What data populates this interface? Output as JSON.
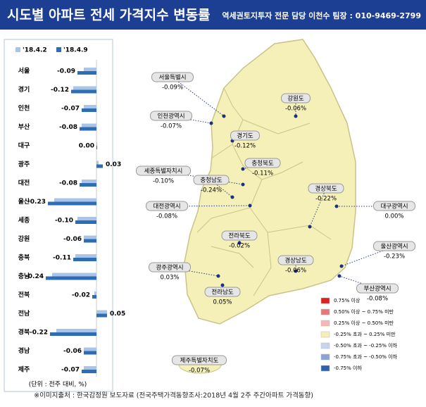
{
  "header": {
    "title": "시도별 아파트 전세 가격지수 변동률",
    "contact": "역세권토지투자 전문 담당 이천수 팀장 : 010-9469-2799"
  },
  "chart_data": {
    "type": "bar",
    "orientation": "horizontal",
    "categories": [
      "서울",
      "경기",
      "인천",
      "부산",
      "대구",
      "광주",
      "대전",
      "울산",
      "세종",
      "강원",
      "충북",
      "충남",
      "전북",
      "전남",
      "경북",
      "경남",
      "제주"
    ],
    "series": [
      {
        "name": "'18.4.2",
        "color": "#a9c4e6",
        "values": [
          -0.06,
          -0.11,
          -0.06,
          -0.07,
          0.0,
          0.01,
          -0.07,
          -0.2,
          -0.09,
          -0.06,
          -0.1,
          -0.21,
          -0.01,
          0.05,
          -0.19,
          -0.06,
          -0.06
        ]
      },
      {
        "name": "'18.4.9",
        "color": "#2e6db4",
        "values": [
          -0.09,
          -0.12,
          -0.07,
          -0.08,
          0.0,
          0.03,
          -0.08,
          -0.23,
          -0.1,
          -0.06,
          -0.11,
          -0.24,
          -0.02,
          0.05,
          -0.22,
          -0.06,
          -0.07
        ],
        "value_labels": [
          "-0.09",
          "-0.12",
          "-0.07",
          "-0.08",
          "0.00",
          "0.03",
          "-0.08",
          "-0.23",
          "-0.10",
          "-0.06",
          "-0.11",
          "-0.24",
          "-0.02",
          "0.05",
          "-0.22",
          "-0.06",
          "-0.07"
        ]
      }
    ],
    "unit_note": "(단위 : 전주 대비, %)"
  },
  "map": {
    "regions": [
      {
        "name": "서울특별시",
        "value": "-0.09%"
      },
      {
        "name": "강원도",
        "value": "-0.06%"
      },
      {
        "name": "인천광역시",
        "value": "-0.07%"
      },
      {
        "name": "경기도",
        "value": "-0.12%"
      },
      {
        "name": "충청북도",
        "value": "-0.11%"
      },
      {
        "name": "세종특별자치시",
        "value": "-0.10%"
      },
      {
        "name": "충청남도",
        "value": "-0.24%"
      },
      {
        "name": "경상북도",
        "value": "-0.22%"
      },
      {
        "name": "대전광역시",
        "value": "-0.08%"
      },
      {
        "name": "대구광역시",
        "value": "0.00%"
      },
      {
        "name": "전라북도",
        "value": "-0.02%"
      },
      {
        "name": "울산광역시",
        "value": "-0.23%"
      },
      {
        "name": "경상남도",
        "value": "-0.06%"
      },
      {
        "name": "광주광역시",
        "value": "0.03%"
      },
      {
        "name": "부산광역시",
        "value": "-0.08%"
      },
      {
        "name": "전라남도",
        "value": "0.05%"
      },
      {
        "name": "제주특별자치도",
        "value": "-0.07%"
      }
    ],
    "legend": [
      {
        "label": "0.75% 이상",
        "color": "#e02020"
      },
      {
        "label": "0.50% 이상 ~ 0.75% 미만",
        "color": "#e87878"
      },
      {
        "label": "0.25% 이상 ~ 0.50% 미만",
        "color": "#f5b8b8"
      },
      {
        "label": "-0.25% 초과 ~ 0.25% 미만",
        "color": "#f5f0b8"
      },
      {
        "label": "-0.50% 초과 ~ -0.25% 이하",
        "color": "#c8d4ee"
      },
      {
        "label": "-0.75% 초과 ~ -0.50% 이하",
        "color": "#8aa4d8"
      },
      {
        "label": "-0.75% 이하",
        "color": "#3060b0"
      }
    ]
  },
  "source": "※이미지출처 : 한국감정원 보도자료 (전국주택가격동향조사:2018년 4월 2주 주간아파트 가격동향)"
}
